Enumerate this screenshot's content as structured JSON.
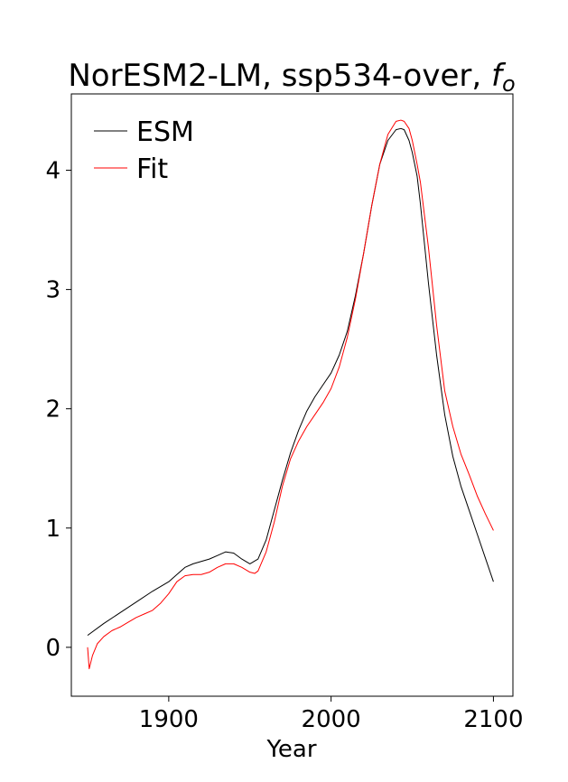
{
  "chart_data": {
    "type": "line",
    "title": "NorESM2-LM, ssp534-over, ",
    "title_symbol": "f",
    "title_subscript": "o",
    "xlabel": "Year",
    "ylabel": "",
    "xlim": [
      1840,
      2112
    ],
    "ylim": [
      -0.41,
      4.64
    ],
    "xticks": [
      1900,
      2000,
      2100
    ],
    "yticks": [
      0,
      1,
      2,
      3,
      4
    ],
    "grid": false,
    "legend_position": "top-left",
    "series": [
      {
        "name": "ESM",
        "color": "#000000",
        "x": [
          1850,
          1860,
          1870,
          1880,
          1890,
          1900,
          1905,
          1910,
          1915,
          1920,
          1925,
          1930,
          1935,
          1940,
          1945,
          1950,
          1955,
          1960,
          1965,
          1970,
          1975,
          1980,
          1985,
          1990,
          1995,
          2000,
          2005,
          2010,
          2015,
          2020,
          2025,
          2030,
          2035,
          2040,
          2043,
          2045,
          2048,
          2050,
          2053,
          2055,
          2060,
          2065,
          2070,
          2075,
          2080,
          2085,
          2090,
          2095,
          2100
        ],
        "values": [
          0.1,
          0.2,
          0.29,
          0.38,
          0.47,
          0.55,
          0.61,
          0.67,
          0.7,
          0.72,
          0.74,
          0.77,
          0.8,
          0.79,
          0.74,
          0.7,
          0.74,
          0.9,
          1.15,
          1.4,
          1.63,
          1.82,
          1.98,
          2.1,
          2.2,
          2.3,
          2.45,
          2.65,
          2.95,
          3.3,
          3.7,
          4.05,
          4.25,
          4.34,
          4.35,
          4.34,
          4.25,
          4.15,
          3.95,
          3.72,
          3.05,
          2.45,
          1.95,
          1.6,
          1.35,
          1.15,
          0.95,
          0.75,
          0.55
        ]
      },
      {
        "name": "Fit",
        "color": "#ff0000",
        "x": [
          1850,
          1851,
          1853,
          1856,
          1860,
          1865,
          1870,
          1875,
          1880,
          1885,
          1890,
          1895,
          1900,
          1905,
          1910,
          1915,
          1920,
          1925,
          1930,
          1935,
          1940,
          1945,
          1950,
          1953,
          1955,
          1960,
          1965,
          1970,
          1975,
          1980,
          1985,
          1990,
          1995,
          2000,
          2005,
          2010,
          2015,
          2020,
          2025,
          2030,
          2035,
          2040,
          2043,
          2045,
          2048,
          2050,
          2053,
          2055,
          2060,
          2065,
          2070,
          2075,
          2080,
          2085,
          2090,
          2095,
          2100
        ],
        "values": [
          0.0,
          -0.18,
          -0.07,
          0.03,
          0.09,
          0.14,
          0.17,
          0.21,
          0.25,
          0.28,
          0.31,
          0.37,
          0.45,
          0.55,
          0.6,
          0.61,
          0.61,
          0.63,
          0.67,
          0.7,
          0.7,
          0.67,
          0.63,
          0.62,
          0.64,
          0.8,
          1.05,
          1.35,
          1.58,
          1.73,
          1.85,
          1.95,
          2.05,
          2.17,
          2.35,
          2.6,
          2.92,
          3.3,
          3.7,
          4.05,
          4.3,
          4.41,
          4.42,
          4.41,
          4.35,
          4.25,
          4.05,
          3.9,
          3.35,
          2.7,
          2.15,
          1.85,
          1.62,
          1.45,
          1.27,
          1.12,
          0.98
        ]
      }
    ]
  }
}
